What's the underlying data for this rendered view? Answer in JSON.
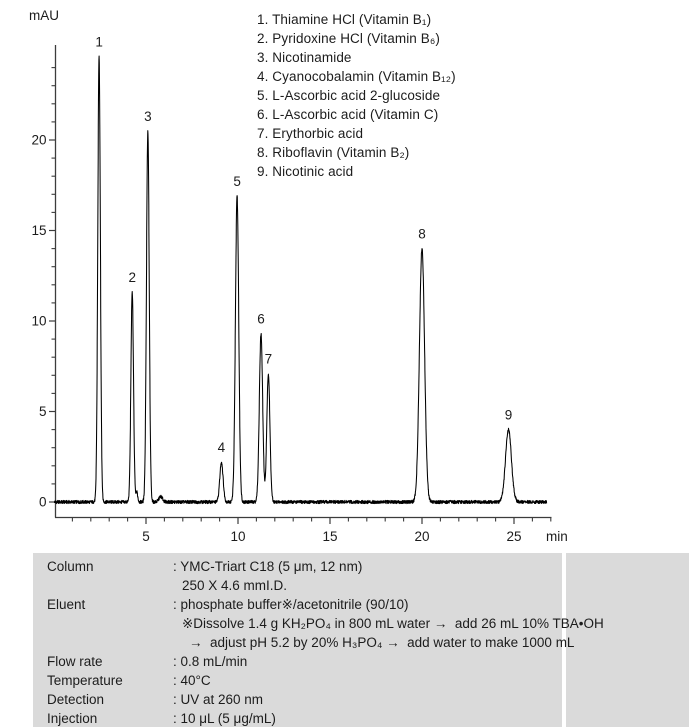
{
  "colors": {
    "background": "#ffffff",
    "panel_gray": "#dadada",
    "trace": "#000000",
    "axis": "#3c3c3c",
    "text": "#1c1c1c"
  },
  "legend": {
    "items": [
      "1. Thiamine HCl (Vitamin B₁)",
      "2. Pyridoxine HCl (Vitamin B₆)",
      "3. Nicotinamide",
      "4. Cyanocobalamin (Vitamin B₁₂)",
      "5. L-Ascorbic acid 2-glucoside",
      "6. L-Ascorbic acid (Vitamin C)",
      "7. Erythorbic acid",
      "8. Riboflavin (Vitamin B₂)",
      "9. Nicotinic acid"
    ]
  },
  "chart_data": {
    "type": "line",
    "title": "",
    "ylabel": "mAU",
    "xlabel": "min",
    "xlim": [
      0,
      27
    ],
    "ylim": [
      0,
      25.2
    ],
    "x_major_ticks": [
      5,
      10,
      15,
      20,
      25
    ],
    "x_minor_tick_step_min": 1,
    "y_major_ticks": [
      0,
      5,
      10,
      15,
      20
    ],
    "y_minor_tick_step_mau": 1,
    "grid": "off",
    "baseline_noise_mau": 0.18,
    "peaks": [
      {
        "n": "1",
        "rt_min": 2.45,
        "height_mau": 24.6,
        "sigma_min": 0.07,
        "compound": "Thiamine HCl (Vitamin B₁)"
      },
      {
        "n": "2",
        "rt_min": 4.25,
        "height_mau": 11.6,
        "sigma_min": 0.07,
        "compound": "Pyridoxine HCl (Vitamin B₆)"
      },
      {
        "n": "3",
        "rt_min": 5.1,
        "height_mau": 20.5,
        "sigma_min": 0.075,
        "compound": "Nicotinamide"
      },
      {
        "n": "4",
        "rt_min": 9.1,
        "height_mau": 2.2,
        "sigma_min": 0.09,
        "compound": "Cyanocobalamin (Vitamin B₁₂)"
      },
      {
        "n": "5",
        "rt_min": 9.95,
        "height_mau": 16.9,
        "sigma_min": 0.09,
        "compound": "L-Ascorbic acid 2-glucoside"
      },
      {
        "n": "6",
        "rt_min": 11.25,
        "height_mau": 9.3,
        "sigma_min": 0.09,
        "compound": "L-Ascorbic acid (Vitamin C)"
      },
      {
        "n": "7",
        "rt_min": 11.65,
        "height_mau": 7.1,
        "sigma_min": 0.085,
        "compound": "Erythorbic acid"
      },
      {
        "n": "8",
        "rt_min": 20.0,
        "height_mau": 14.0,
        "sigma_min": 0.14,
        "compound": "Riboflavin (Vitamin B₂)"
      },
      {
        "n": "9",
        "rt_min": 24.7,
        "height_mau": 4.0,
        "sigma_min": 0.16,
        "compound": "Nicotinic acid"
      }
    ],
    "minor_peaks": [
      {
        "rt_min": 4.5,
        "height_mau": 0.55,
        "sigma_min": 0.05
      },
      {
        "rt_min": 5.8,
        "height_mau": 0.3,
        "sigma_min": 0.1
      }
    ]
  },
  "conditions": {
    "rows": [
      {
        "label": "Column",
        "lines": [
          ": YMC-Triart C18 (5 μm, 12 nm)",
          "250 X 4.6 mmI.D."
        ]
      },
      {
        "label": "Eluent",
        "lines": [
          ": phosphate buffer※/acetonitrile (90/10)",
          "※Dissolve 1.4 g KH₂PO₄ in 800 mL water →  add 26 mL 10% TBA•OH",
          "→  adjust pH 5.2 by 20% H₃PO₄ →  add water to make 1000 mL"
        ]
      },
      {
        "label": "Flow rate",
        "lines": [
          ": 0.8 mL/min"
        ]
      },
      {
        "label": "Temperature",
        "lines": [
          ": 40°C"
        ]
      },
      {
        "label": "Detection",
        "lines": [
          ": UV at 260 nm"
        ]
      },
      {
        "label": "Injection",
        "lines": [
          ": 10 μL (5 μg/mL)"
        ]
      }
    ]
  }
}
